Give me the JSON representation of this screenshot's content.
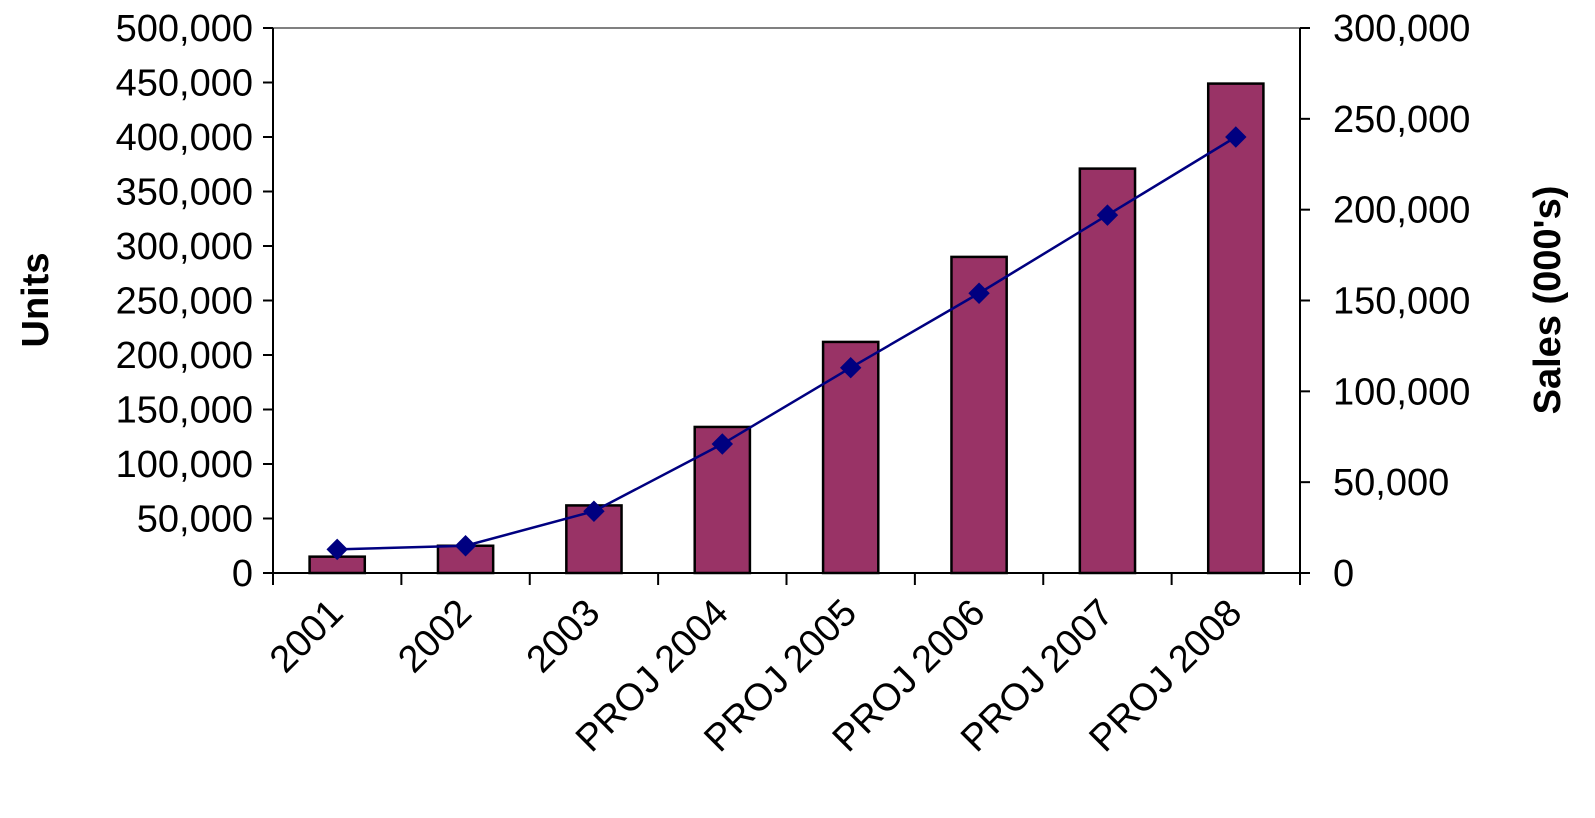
{
  "chart_data": {
    "type": "bar",
    "title": "",
    "xlabel": "",
    "ylabel": "Units",
    "y2label": "Sales (000's)",
    "categories": [
      "2001",
      "2002",
      "2003",
      "PROJ 2004",
      "PROJ 2005",
      "PROJ 2006",
      "PROJ 2007",
      "PROJ 2008"
    ],
    "ylim": [
      0,
      500000
    ],
    "y2lim": [
      0,
      300000
    ],
    "y_ticks": [
      "0",
      "50,000",
      "100,000",
      "150,000",
      "200,000",
      "250,000",
      "300,000",
      "350,000",
      "400,000",
      "450,000",
      "500,000"
    ],
    "y2_ticks": [
      "0",
      "50,000",
      "100,000",
      "150,000",
      "200,000",
      "250,000",
      "300,000"
    ],
    "series": [
      {
        "type": "bar",
        "axis": "left",
        "color": "#993366",
        "values": [
          15000,
          25000,
          62000,
          134000,
          212000,
          290000,
          371000,
          449000
        ]
      },
      {
        "type": "line",
        "axis": "right",
        "color": "#000080",
        "marker": "diamond",
        "values": [
          13000,
          15000,
          34000,
          71000,
          113000,
          154000,
          197000,
          240000
        ]
      }
    ],
    "grid": false,
    "legend": "none"
  }
}
